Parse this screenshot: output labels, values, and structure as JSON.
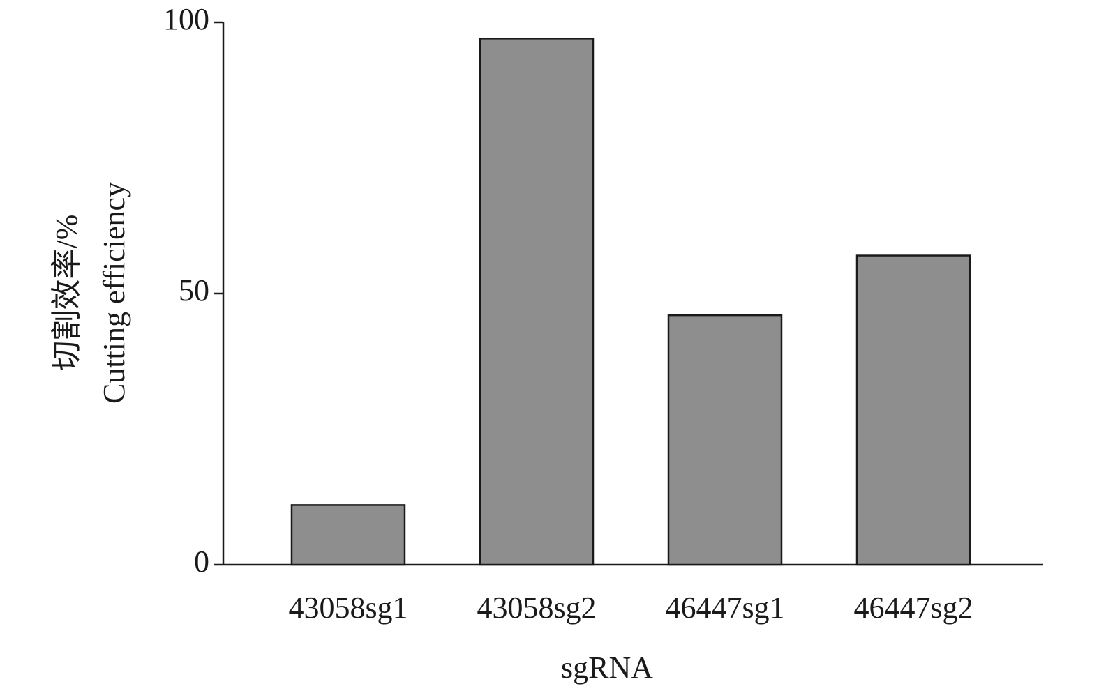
{
  "chart_data": {
    "type": "bar",
    "y_label_lines": [
      "切割效率/%",
      "Cutting efficiency"
    ],
    "x_label": "sgRNA",
    "categories": [
      "43058sg1",
      "43058sg2",
      "46447sg1",
      "46447sg2"
    ],
    "values": [
      11,
      97,
      46,
      57
    ],
    "color": "#8f8e8f",
    "ylim": [
      0,
      100
    ],
    "yticks": [
      0,
      50,
      100
    ],
    "grid": false
  }
}
